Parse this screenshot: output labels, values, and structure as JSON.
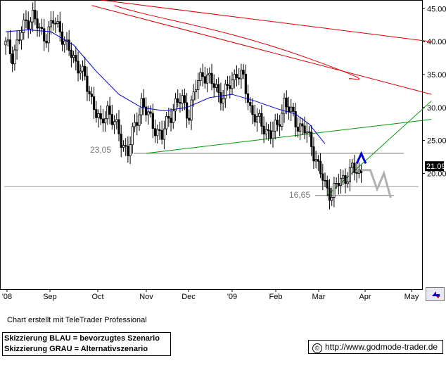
{
  "chart_data": {
    "type": "candlestick",
    "instrument_price_label": "21.09",
    "y_ticks": [
      "45.00",
      "40.00",
      "35.00",
      "30.00",
      "25.00",
      "20.00"
    ],
    "x_ticks": [
      "'08",
      "Sep",
      "Oct",
      "Nov",
      "Dec",
      "'09",
      "Feb",
      "Mar",
      "Apr",
      "May"
    ],
    "ylim": [
      13.5,
      45.5
    ],
    "x_scale_note": "x in trading days from start of visible range",
    "annotations": [
      {
        "label": "23,05",
        "value": 23.05
      },
      {
        "label": "16,65",
        "value": 16.65
      }
    ],
    "levels": [
      23.05,
      16.65,
      18.0
    ],
    "ohlc_close_path": [
      {
        "d": 0,
        "c": 39.5
      },
      {
        "d": 3,
        "c": 38.0
      },
      {
        "d": 6,
        "c": 40.5
      },
      {
        "d": 9,
        "c": 43.0
      },
      {
        "d": 12,
        "c": 44.0
      },
      {
        "d": 15,
        "c": 41.5
      },
      {
        "d": 18,
        "c": 41.0
      },
      {
        "d": 21,
        "c": 43.0
      },
      {
        "d": 24,
        "c": 42.0
      },
      {
        "d": 27,
        "c": 39.0
      },
      {
        "d": 30,
        "c": 37.5
      },
      {
        "d": 33,
        "c": 36.0
      },
      {
        "d": 36,
        "c": 33.0
      },
      {
        "d": 39,
        "c": 30.5
      },
      {
        "d": 42,
        "c": 27.0
      },
      {
        "d": 45,
        "c": 30.0
      },
      {
        "d": 48,
        "c": 27.5
      },
      {
        "d": 51,
        "c": 25.0
      },
      {
        "d": 54,
        "c": 23.3
      },
      {
        "d": 57,
        "c": 27.0
      },
      {
        "d": 60,
        "c": 31.0
      },
      {
        "d": 63,
        "c": 28.5
      },
      {
        "d": 66,
        "c": 27.0
      },
      {
        "d": 69,
        "c": 25.5
      },
      {
        "d": 72,
        "c": 28.5
      },
      {
        "d": 75,
        "c": 30.5
      },
      {
        "d": 78,
        "c": 31.0
      },
      {
        "d": 81,
        "c": 29.0
      },
      {
        "d": 84,
        "c": 33.0
      },
      {
        "d": 87,
        "c": 35.5
      },
      {
        "d": 90,
        "c": 34.0
      },
      {
        "d": 93,
        "c": 33.0
      },
      {
        "d": 96,
        "c": 31.5
      },
      {
        "d": 99,
        "c": 33.5
      },
      {
        "d": 102,
        "c": 35.5
      },
      {
        "d": 105,
        "c": 34.0
      },
      {
        "d": 108,
        "c": 30.0
      },
      {
        "d": 111,
        "c": 28.0
      },
      {
        "d": 114,
        "c": 27.0
      },
      {
        "d": 117,
        "c": 26.0
      },
      {
        "d": 120,
        "c": 27.0
      },
      {
        "d": 123,
        "c": 31.0
      },
      {
        "d": 126,
        "c": 29.0
      },
      {
        "d": 129,
        "c": 27.5
      },
      {
        "d": 132,
        "c": 26.5
      },
      {
        "d": 135,
        "c": 24.5
      },
      {
        "d": 138,
        "c": 21.0
      },
      {
        "d": 141,
        "c": 18.0
      },
      {
        "d": 144,
        "c": 17.0
      },
      {
        "d": 147,
        "c": 18.5
      },
      {
        "d": 150,
        "c": 19.5
      },
      {
        "d": 153,
        "c": 20.5
      },
      {
        "d": 156,
        "c": 20.0
      },
      {
        "d": 158,
        "c": 21.09
      }
    ],
    "moving_average": [
      {
        "d": 0,
        "v": 41.5
      },
      {
        "d": 10,
        "v": 41.8
      },
      {
        "d": 20,
        "v": 41.5
      },
      {
        "d": 30,
        "v": 39.5
      },
      {
        "d": 40,
        "v": 35.5
      },
      {
        "d": 50,
        "v": 32.0
      },
      {
        "d": 60,
        "v": 30.0
      },
      {
        "d": 70,
        "v": 29.5
      },
      {
        "d": 80,
        "v": 30.0
      },
      {
        "d": 90,
        "v": 31.5
      },
      {
        "d": 100,
        "v": 32.0
      },
      {
        "d": 110,
        "v": 31.0
      },
      {
        "d": 120,
        "v": 29.8
      },
      {
        "d": 128,
        "v": 29.0
      },
      {
        "d": 134,
        "v": 27.5
      },
      {
        "d": 141,
        "v": 24.5
      }
    ],
    "trendlines": [
      {
        "name": "red-upper",
        "color": "#dd0000",
        "from": [
          38,
          46.5
        ],
        "to": [
          188,
          40.0
        ]
      },
      {
        "name": "red-lower",
        "color": "#dd0000",
        "from": [
          38,
          45.5
        ],
        "to": [
          188,
          32.0
        ]
      },
      {
        "name": "red-curve",
        "color": "#dd0000",
        "from": [
          48,
          45.5
        ],
        "to": [
          152,
          34.3
        ]
      },
      {
        "name": "green-support",
        "color": "#009900",
        "from": [
          62,
          23.05
        ],
        "to": [
          188,
          28.2
        ]
      },
      {
        "name": "green-rising",
        "color": "#009900",
        "from": [
          142,
          16.65
        ],
        "to": [
          188,
          31.0
        ]
      }
    ],
    "scenario_blue": [
      [
        155,
        21.5
      ],
      [
        157,
        23.0
      ],
      [
        159,
        21.5
      ]
    ],
    "scenario_grey": [
      [
        157,
        20.5
      ],
      [
        161,
        20.5
      ],
      [
        164,
        17.6
      ],
      [
        167,
        20.0
      ],
      [
        170,
        16.3
      ]
    ]
  },
  "credit_text": "Chart erstellt mit TeleTrader Professional",
  "legend": {
    "blue": "Skizzierung BLAU = bevorzugtes Szenario",
    "grey": "Skizzierung GRAU = Alternativszenario"
  },
  "url": "http://www.godmode-trader.de",
  "colors": {
    "candle": "#000000",
    "ma": "#0000cc",
    "red": "#dd0000",
    "green": "#009900",
    "blue_scenario": "#0000dd",
    "grey_scenario": "#b0b0b0",
    "level_line": "#999999"
  }
}
